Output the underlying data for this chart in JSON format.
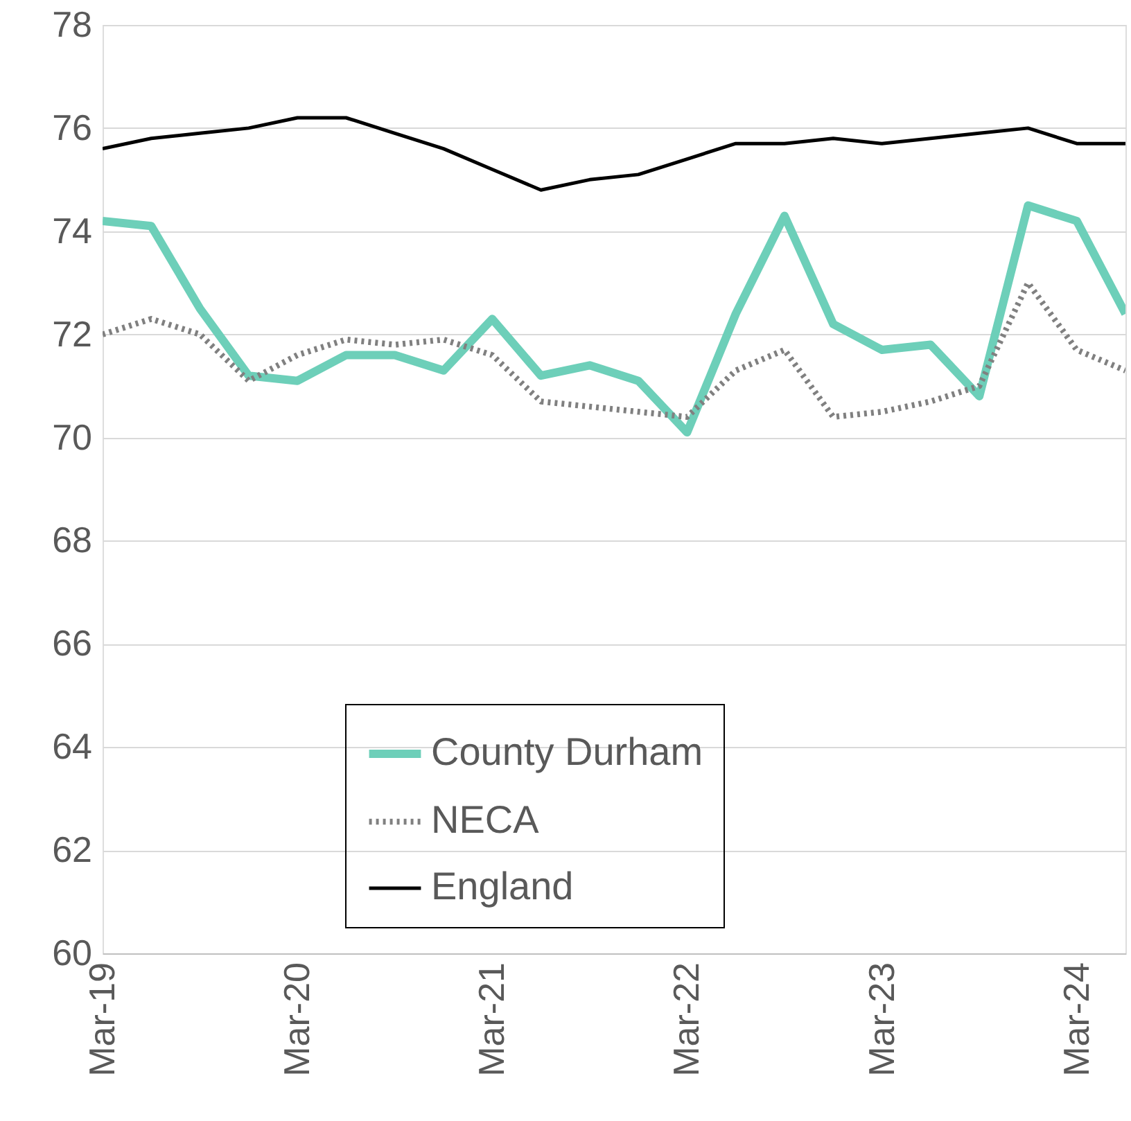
{
  "chart_data": {
    "type": "line",
    "categories": [
      "Mar-19",
      null,
      null,
      null,
      "Mar-20",
      null,
      null,
      null,
      "Mar-21",
      null,
      null,
      null,
      "Mar-22",
      null,
      null,
      null,
      "Mar-23",
      null,
      null,
      null,
      "Mar-24",
      null
    ],
    "series": [
      {
        "name": "County Durham",
        "color": "#6dcfb9",
        "line_style": "solid",
        "values": [
          74.2,
          74.1,
          72.5,
          71.2,
          71.1,
          71.6,
          71.6,
          71.3,
          72.3,
          71.2,
          71.4,
          71.1,
          70.1,
          72.4,
          74.3,
          72.2,
          71.7,
          71.8,
          70.8,
          74.5,
          74.2,
          72.4
        ]
      },
      {
        "name": "NECA",
        "color": "#808080",
        "line_style": "dotted",
        "values": [
          72.0,
          72.3,
          72.0,
          71.1,
          71.6,
          71.9,
          71.8,
          71.9,
          71.6,
          70.7,
          70.6,
          70.5,
          70.4,
          71.3,
          71.7,
          70.4,
          70.5,
          70.7,
          71.0,
          73.0,
          71.7,
          71.3
        ]
      },
      {
        "name": "England",
        "color": "#000000",
        "line_style": "solid",
        "values": [
          75.6,
          75.8,
          75.9,
          76.0,
          76.2,
          76.2,
          75.9,
          75.6,
          75.2,
          74.8,
          75.0,
          75.1,
          75.4,
          75.7,
          75.7,
          75.8,
          75.7,
          75.8,
          75.9,
          76.0,
          75.7,
          75.7
        ]
      }
    ],
    "ylim": [
      60,
      78
    ],
    "yticks": [
      60,
      62,
      64,
      66,
      68,
      70,
      72,
      74,
      76,
      78
    ],
    "grid": "y",
    "legend": "bottom",
    "marker": "none"
  }
}
